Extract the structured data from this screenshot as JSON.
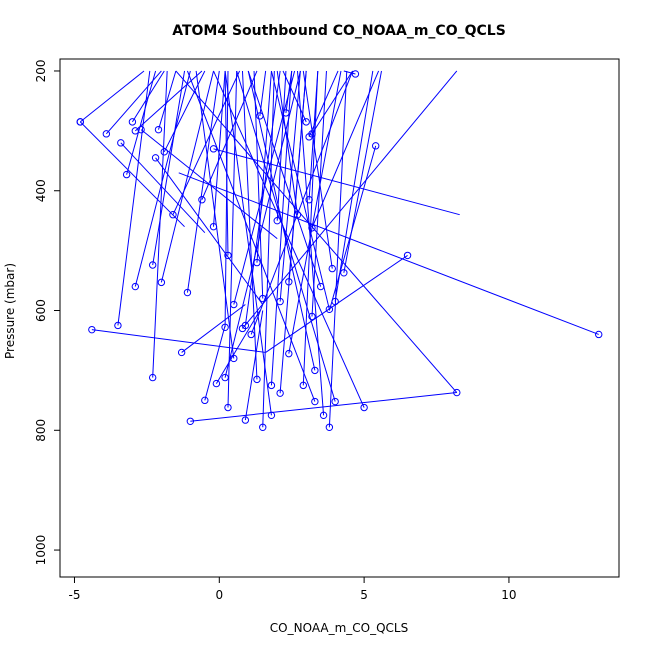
{
  "chart_data": {
    "type": "line",
    "title": "ATOM4 Southbound CO_NOAA_m_CO_QCLS",
    "xlabel": "CO_NOAA_m_CO_QCLS",
    "ylabel": "Pressure (mbar)",
    "xlim": [
      -5.5,
      13.8
    ],
    "ylim": [
      1045,
      180
    ],
    "y_reversed": true,
    "xticks": [
      -5,
      0,
      5,
      10
    ],
    "yticks": [
      200,
      400,
      600,
      800,
      1000
    ],
    "grid": false,
    "series_color": "#0000ff",
    "marker": "open-circle",
    "segments": [
      [
        [
          -4.8,
          285
        ],
        [
          -2.6,
          200
        ]
      ],
      [
        [
          -4.8,
          285
        ],
        [
          -1.2,
          460
        ]
      ],
      [
        [
          -3.9,
          305
        ],
        [
          -2.0,
          200
        ]
      ],
      [
        [
          -3.4,
          320
        ],
        [
          -0.5,
          470
        ]
      ],
      [
        [
          -3.2,
          373
        ],
        [
          -2.2,
          200
        ]
      ],
      [
        [
          -3.0,
          285
        ],
        [
          -1.9,
          200
        ]
      ],
      [
        [
          -2.9,
          300
        ],
        [
          -0.6,
          200
        ]
      ],
      [
        [
          -2.7,
          298
        ],
        [
          2.0,
          480
        ]
      ],
      [
        [
          -2.1,
          298
        ],
        [
          -1.5,
          200
        ]
      ],
      [
        [
          -2.2,
          345
        ],
        [
          1.5,
          590
        ]
      ],
      [
        [
          -1.9,
          335
        ],
        [
          -0.5,
          200
        ]
      ],
      [
        [
          -0.2,
          330
        ],
        [
          8.3,
          440
        ]
      ],
      [
        [
          1.4,
          275
        ],
        [
          1.6,
          200
        ]
      ],
      [
        [
          2.3,
          270
        ],
        [
          2.5,
          200
        ]
      ],
      [
        [
          3.0,
          285
        ],
        [
          2.2,
          200
        ]
      ],
      [
        [
          3.1,
          310
        ],
        [
          4.1,
          200
        ]
      ],
      [
        [
          3.2,
          305
        ],
        [
          4.6,
          200
        ]
      ],
      [
        [
          4.7,
          205
        ],
        [
          4.3,
          200
        ]
      ],
      [
        [
          5.4,
          325
        ],
        [
          3.8,
          600
        ]
      ],
      [
        [
          -1.6,
          440
        ],
        [
          0.7,
          200
        ]
      ],
      [
        [
          -0.6,
          415
        ],
        [
          1.3,
          200
        ]
      ],
      [
        [
          -0.2,
          460
        ],
        [
          0.2,
          200
        ]
      ],
      [
        [
          0.3,
          508
        ],
        [
          0.2,
          200
        ]
      ],
      [
        [
          1.3,
          520
        ],
        [
          1.8,
          200
        ]
      ],
      [
        [
          2.0,
          450
        ],
        [
          2.3,
          200
        ]
      ],
      [
        [
          2.7,
          440
        ],
        [
          2.0,
          200
        ]
      ],
      [
        [
          3.1,
          415
        ],
        [
          3.4,
          200
        ]
      ],
      [
        [
          3.2,
          462
        ],
        [
          5.5,
          200
        ]
      ],
      [
        [
          6.5,
          508
        ],
        [
          1.6,
          670
        ]
      ],
      [
        [
          -2.3,
          524
        ],
        [
          -1.2,
          200
        ]
      ],
      [
        [
          -2.0,
          553
        ],
        [
          -0.2,
          200
        ]
      ],
      [
        [
          -2.9,
          560
        ],
        [
          -1.0,
          200
        ]
      ],
      [
        [
          -3.5,
          625
        ],
        [
          -2.4,
          200
        ]
      ],
      [
        [
          -4.4,
          632
        ],
        [
          1.6,
          670
        ]
      ],
      [
        [
          -1.1,
          570
        ],
        [
          0.0,
          200
        ]
      ],
      [
        [
          0.5,
          590
        ],
        [
          2.6,
          200
        ]
      ],
      [
        [
          0.2,
          628
        ],
        [
          0.3,
          200
        ]
      ],
      [
        [
          0.9,
          625
        ],
        [
          2.1,
          200
        ]
      ],
      [
        [
          1.5,
          580
        ],
        [
          1.2,
          200
        ]
      ],
      [
        [
          2.1,
          585
        ],
        [
          2.8,
          200
        ]
      ],
      [
        [
          2.4,
          552
        ],
        [
          3.0,
          200
        ]
      ],
      [
        [
          3.2,
          610
        ],
        [
          3.7,
          200
        ]
      ],
      [
        [
          3.5,
          560
        ],
        [
          1.0,
          200
        ]
      ],
      [
        [
          3.9,
          530
        ],
        [
          2.9,
          200
        ]
      ],
      [
        [
          4.3,
          537
        ],
        [
          5.6,
          200
        ]
      ],
      [
        [
          3.8,
          598
        ],
        [
          1.8,
          200
        ]
      ],
      [
        [
          4.0,
          585
        ],
        [
          5.3,
          200
        ]
      ],
      [
        [
          13.1,
          640
        ],
        [
          -1.4,
          370
        ]
      ],
      [
        [
          -1.3,
          670
        ],
        [
          0.9,
          590
        ]
      ],
      [
        [
          -2.3,
          712
        ],
        [
          -1.8,
          200
        ]
      ],
      [
        [
          -0.5,
          750
        ],
        [
          0.2,
          625
        ]
      ],
      [
        [
          -1.0,
          785
        ],
        [
          8.2,
          737
        ]
      ],
      [
        [
          0.2,
          712
        ],
        [
          2.8,
          200
        ]
      ],
      [
        [
          -0.1,
          722
        ],
        [
          1.4,
          600
        ]
      ],
      [
        [
          0.3,
          762
        ],
        [
          0.6,
          200
        ]
      ],
      [
        [
          0.9,
          783
        ],
        [
          1.5,
          600
        ]
      ],
      [
        [
          1.3,
          715
        ],
        [
          0.8,
          200
        ]
      ],
      [
        [
          1.5,
          795
        ],
        [
          1.9,
          200
        ]
      ],
      [
        [
          1.8,
          725
        ],
        [
          2.5,
          200
        ]
      ],
      [
        [
          1.8,
          775
        ],
        [
          0.2,
          200
        ]
      ],
      [
        [
          2.1,
          738
        ],
        [
          3.0,
          200
        ]
      ],
      [
        [
          2.4,
          672
        ],
        [
          4.2,
          200
        ]
      ],
      [
        [
          2.9,
          725
        ],
        [
          3.4,
          200
        ]
      ],
      [
        [
          3.3,
          752
        ],
        [
          -1.1,
          200
        ]
      ],
      [
        [
          3.3,
          700
        ],
        [
          1.0,
          200
        ]
      ],
      [
        [
          3.6,
          775
        ],
        [
          2.7,
          200
        ]
      ],
      [
        [
          3.8,
          795
        ],
        [
          4.4,
          200
        ]
      ],
      [
        [
          4.0,
          752
        ],
        [
          0.6,
          200
        ]
      ],
      [
        [
          5.0,
          762
        ],
        [
          -0.2,
          200
        ]
      ],
      [
        [
          8.2,
          737
        ],
        [
          -1.5,
          200
        ]
      ],
      [
        [
          0.8,
          630
        ],
        [
          8.2,
          200
        ]
      ],
      [
        [
          1.1,
          640
        ],
        [
          4.6,
          200
        ]
      ],
      [
        [
          0.5,
          680
        ],
        [
          -0.8,
          200
        ]
      ]
    ]
  }
}
